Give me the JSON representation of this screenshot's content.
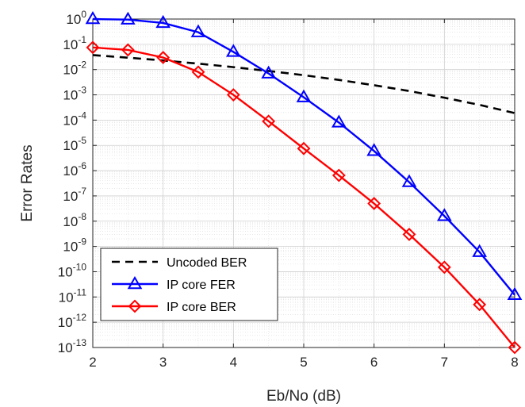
{
  "chart_data": {
    "type": "line",
    "xlabel": "Eb/No (dB)",
    "ylabel": "Error Rates",
    "xlim": [
      2,
      8
    ],
    "ylim_log10": [
      -13,
      0
    ],
    "yscale": "log",
    "grid": true,
    "legend_position": "bottom-left",
    "x_ticks": [
      "2",
      "3",
      "4",
      "5",
      "6",
      "7",
      "8"
    ],
    "y_tick_base": "10",
    "y_tick_exponents": [
      "0",
      "-1",
      "-2",
      "-3",
      "-4",
      "-5",
      "-6",
      "-7",
      "-8",
      "-9",
      "-10",
      "-11",
      "-12",
      "-13"
    ],
    "series": [
      {
        "name": "Uncoded BER",
        "color": "#000000",
        "style": "dashed",
        "marker": "none",
        "x": [
          2,
          2.5,
          3,
          3.5,
          4,
          4.5,
          5,
          5.5,
          6,
          6.5,
          7,
          7.5,
          8
        ],
        "y": [
          0.0375,
          0.0296,
          0.0229,
          0.0172,
          0.0125,
          0.0088,
          0.006,
          0.0039,
          0.0024,
          0.00142,
          0.00077,
          0.0004,
          0.00019
        ]
      },
      {
        "name": "IP core FER",
        "color": "#0000ff",
        "style": "solid",
        "marker": "triangle",
        "x": [
          2,
          2.5,
          3,
          3.5,
          4,
          4.5,
          5,
          5.5,
          6,
          6.5,
          7,
          7.5,
          8
        ],
        "y": [
          1.0,
          0.95,
          0.7,
          0.3,
          0.05,
          0.007,
          0.0008,
          8e-05,
          6e-06,
          3.5e-07,
          1.6e-08,
          6e-10,
          1.2e-11
        ]
      },
      {
        "name": "IP core BER",
        "color": "#ff0000",
        "style": "solid",
        "marker": "diamond",
        "x": [
          2,
          2.5,
          3,
          3.5,
          4,
          4.5,
          5,
          5.5,
          6,
          6.5,
          7,
          7.5,
          8
        ],
        "y": [
          0.075,
          0.06,
          0.03,
          0.008,
          0.001,
          9e-05,
          7.5e-06,
          6.5e-07,
          5e-08,
          3e-09,
          1.5e-10,
          5e-12,
          1e-13
        ]
      }
    ]
  }
}
